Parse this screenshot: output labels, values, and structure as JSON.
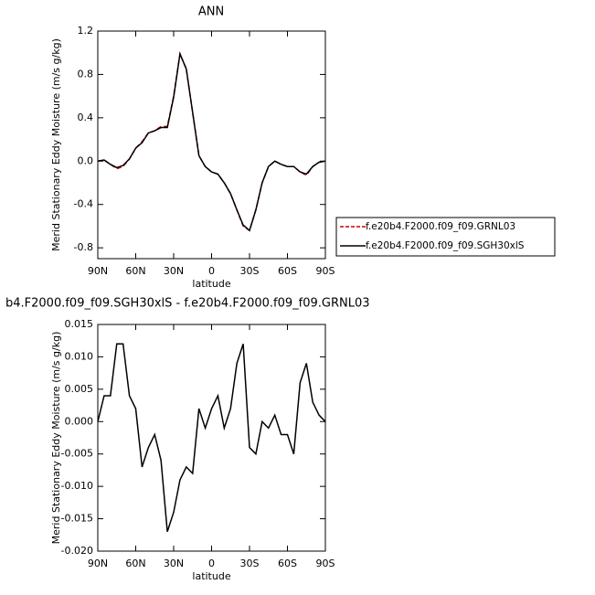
{
  "chart_data": [
    {
      "type": "line",
      "title": "ANN",
      "x_label": "latitude",
      "y_label": "Merid Stationary Eddy Moisture (m/s g/kg)",
      "x": [
        90,
        85,
        80,
        75,
        70,
        65,
        60,
        55,
        50,
        45,
        40,
        35,
        30,
        25,
        20,
        15,
        10,
        5,
        0,
        -5,
        -10,
        -15,
        -20,
        -25,
        -30,
        -35,
        -40,
        -45,
        -50,
        -55,
        -60,
        -65,
        -70,
        -75,
        -80,
        -85,
        -90
      ],
      "series": [
        {
          "name": "f.e20b4.F2000.f09_f09.GRNL03",
          "color": "#cc0000",
          "linestyle": "dashed",
          "values": [
            0.0,
            0.01,
            -0.03,
            -0.07,
            -0.05,
            0.02,
            0.12,
            0.18,
            0.26,
            0.28,
            0.32,
            0.32,
            0.6,
            0.99,
            0.85,
            0.45,
            0.05,
            -0.05,
            -0.1,
            -0.12,
            -0.2,
            -0.3,
            -0.45,
            -0.6,
            -0.64,
            -0.45,
            -0.2,
            -0.05,
            0.0,
            -0.03,
            -0.05,
            -0.05,
            -0.1,
            -0.13,
            -0.05,
            -0.01,
            0.0
          ]
        },
        {
          "name": "f.e20b4.F2000.f09_f09.SGH30xlS",
          "color": "#000000",
          "linestyle": "solid",
          "values": [
            0.0,
            0.01,
            -0.03,
            -0.06,
            -0.04,
            0.02,
            0.12,
            0.17,
            0.26,
            0.28,
            0.31,
            0.31,
            0.59,
            0.99,
            0.85,
            0.45,
            0.05,
            -0.05,
            -0.1,
            -0.12,
            -0.2,
            -0.3,
            -0.45,
            -0.59,
            -0.64,
            -0.45,
            -0.2,
            -0.05,
            0.0,
            -0.03,
            -0.05,
            -0.05,
            -0.1,
            -0.12,
            -0.05,
            -0.01,
            0.0
          ]
        }
      ],
      "xlim": [
        90,
        -90
      ],
      "xticks": [
        {
          "value": 90,
          "label": "90N"
        },
        {
          "value": 60,
          "label": "60N"
        },
        {
          "value": 30,
          "label": "30N"
        },
        0,
        {
          "value": -30,
          "label": "30S"
        },
        {
          "value": -60,
          "label": "60S"
        },
        {
          "value": -90,
          "label": "90S"
        }
      ],
      "ylim": [
        -0.9,
        1.2
      ],
      "yticks": [
        -0.8,
        -0.4,
        {
          "value": 0,
          "label": "0.0"
        },
        0.4,
        0.8,
        1.2
      ],
      "legend": "right"
    },
    {
      "type": "line",
      "title": "b4.F2000.f09_f09.SGH30xlS - f.e20b4.F2000.f09_f09.GRNL03",
      "x_label": "latitude",
      "y_label": "Merid Stationary Eddy Moisture (m/s g/kg)",
      "x": [
        90,
        85,
        80,
        75,
        70,
        65,
        60,
        55,
        50,
        45,
        40,
        35,
        30,
        25,
        20,
        15,
        10,
        5,
        0,
        -5,
        -10,
        -15,
        -20,
        -25,
        -30,
        -35,
        -40,
        -45,
        -50,
        -55,
        -60,
        -65,
        -70,
        -75,
        -80,
        -85,
        -90
      ],
      "series": [
        {
          "color": "#000000",
          "linestyle": "solid",
          "values": [
            0.0,
            0.004,
            0.004,
            0.012,
            0.012,
            0.004,
            0.002,
            -0.007,
            -0.004,
            -0.002,
            -0.006,
            -0.017,
            -0.014,
            -0.009,
            -0.007,
            -0.008,
            0.002,
            -0.001,
            0.002,
            0.004,
            -0.001,
            0.002,
            0.009,
            0.012,
            -0.004,
            -0.005,
            0.0,
            -0.001,
            0.001,
            -0.002,
            -0.002,
            -0.005,
            0.006,
            0.009,
            0.003,
            0.001,
            0.0
          ]
        }
      ],
      "xlim": [
        90,
        -90
      ],
      "xticks": [
        {
          "value": 90,
          "label": "90N"
        },
        {
          "value": 60,
          "label": "60N"
        },
        {
          "value": 30,
          "label": "30N"
        },
        0,
        {
          "value": -30,
          "label": "30S"
        },
        {
          "value": -60,
          "label": "60S"
        },
        {
          "value": -90,
          "label": "90S"
        }
      ],
      "ylim": [
        -0.02,
        0.015
      ],
      "yticks": [
        {
          "value": -0.02,
          "label": "-0.020"
        },
        -0.015,
        {
          "value": -0.01,
          "label": "-0.010"
        },
        -0.005,
        {
          "value": 0,
          "label": "0.000"
        },
        0.005,
        {
          "value": 0.01,
          "label": "0.010"
        },
        0.015
      ]
    }
  ]
}
